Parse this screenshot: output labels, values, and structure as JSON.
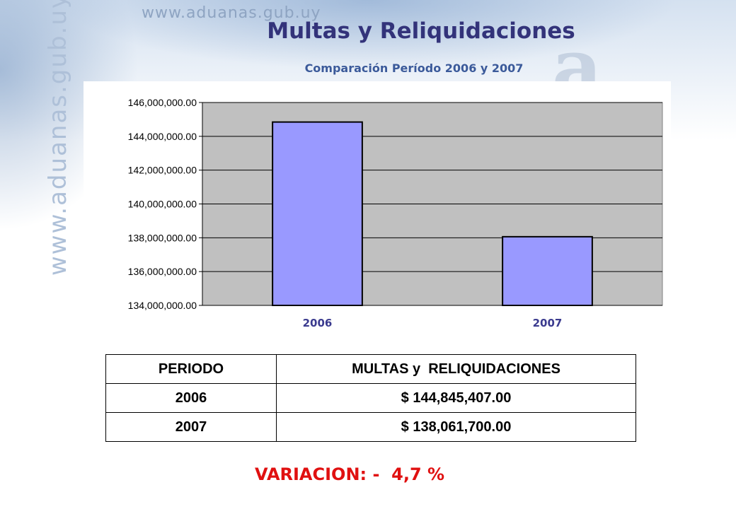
{
  "branding": {
    "watermark_url": "www.aduanas.gub.uy",
    "logo_mark": "a"
  },
  "header": {
    "title": "Multas y Reliquidaciones",
    "subtitle": "Comparación Período 2006 y 2007"
  },
  "chart_data": {
    "type": "bar",
    "categories": [
      "2006",
      "2007"
    ],
    "values": [
      144845407.0,
      138061700.0
    ],
    "ylim": [
      134000000,
      146000000
    ],
    "yticks": [
      134000000,
      136000000,
      138000000,
      140000000,
      142000000,
      144000000,
      146000000
    ],
    "ytick_labels": [
      "134,000,000.00",
      "136,000,000.00",
      "138,000,000.00",
      "140,000,000.00",
      "142,000,000.00",
      "144,000,000.00",
      "146,000,000.00"
    ],
    "grid": true,
    "legend": "none",
    "colors": {
      "bar": "#9999ff",
      "plot_background": "#c0c0c0",
      "category_label": "#3b3b8f"
    }
  },
  "table": {
    "headers": [
      "PERIODO",
      "MULTAS y  RELIQUIDACIONES"
    ],
    "rows": [
      [
        "2006",
        "$ 144,845,407.00"
      ],
      [
        "2007",
        "$ 138,061,700.00"
      ]
    ]
  },
  "variation": {
    "text": "VARIACION: -  4,7 %"
  }
}
